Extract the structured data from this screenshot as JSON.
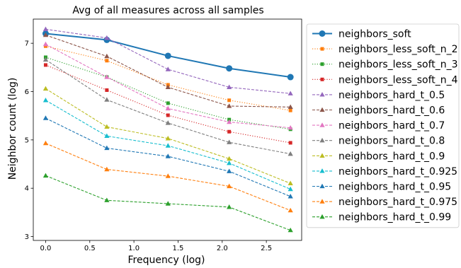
{
  "chart_data": {
    "type": "line",
    "title": "Avg of all measures across all samples",
    "xlabel": "Frequency (log)",
    "ylabel": "Neighbor count (log)",
    "xlim": [
      -0.14,
      2.9
    ],
    "ylim": [
      2.92,
      7.5
    ],
    "xticks": [
      0.0,
      0.5,
      1.0,
      1.5,
      2.0,
      2.5
    ],
    "xtick_labels": [
      "0.0",
      "0.5",
      "1.0",
      "1.5",
      "2.0",
      "2.5"
    ],
    "yticks": [
      3,
      4,
      5,
      6,
      7
    ],
    "ytick_labels": [
      "3",
      "4",
      "5",
      "6",
      "7"
    ],
    "x": [
      0.0,
      0.693,
      1.386,
      2.079,
      2.773
    ],
    "legend_position": "right, outside plot",
    "grid": false,
    "series": [
      {
        "name": "neighbors_soft",
        "color": "#1f77b4",
        "linestyle": "solid",
        "marker": "circle",
        "values": [
          7.2,
          7.07,
          6.74,
          6.48,
          6.3
        ]
      },
      {
        "name": "neighbors_less_soft_n_2",
        "color": "#ff7f0e",
        "linestyle": "dotted",
        "marker": "square",
        "values": [
          6.94,
          6.64,
          6.14,
          5.82,
          5.61
        ]
      },
      {
        "name": "neighbors_less_soft_n_3",
        "color": "#2ca02c",
        "linestyle": "dotted",
        "marker": "square",
        "values": [
          6.71,
          6.3,
          5.76,
          5.42,
          5.22
        ]
      },
      {
        "name": "neighbors_less_soft_n_4",
        "color": "#d62728",
        "linestyle": "dotted",
        "marker": "square",
        "values": [
          6.55,
          6.03,
          5.51,
          5.17,
          4.94
        ]
      },
      {
        "name": "neighbors_hard_t_0.5",
        "color": "#9467bd",
        "linestyle": "dashed",
        "marker": "triangle",
        "values": [
          7.29,
          7.11,
          6.46,
          6.09,
          5.96
        ]
      },
      {
        "name": "neighbors_hard_t_0.6",
        "color": "#8c564b",
        "linestyle": "dashed",
        "marker": "triangle",
        "values": [
          7.17,
          6.73,
          6.09,
          5.7,
          5.68
        ]
      },
      {
        "name": "neighbors_hard_t_0.7",
        "color": "#e377c2",
        "linestyle": "dashed",
        "marker": "triangle",
        "values": [
          6.98,
          6.3,
          5.65,
          5.37,
          5.25
        ]
      },
      {
        "name": "neighbors_hard_t_0.8",
        "color": "#7f7f7f",
        "linestyle": "dashed",
        "marker": "triangle",
        "values": [
          6.66,
          5.83,
          5.35,
          4.95,
          4.71
        ]
      },
      {
        "name": "neighbors_hard_t_0.9",
        "color": "#bcbd22",
        "linestyle": "dashed",
        "marker": "triangle",
        "values": [
          6.06,
          5.27,
          5.03,
          4.61,
          4.1
        ]
      },
      {
        "name": "neighbors_hard_t_0.925",
        "color": "#17becf",
        "linestyle": "dashed",
        "marker": "triangle",
        "values": [
          5.82,
          5.08,
          4.88,
          4.52,
          3.98
        ]
      },
      {
        "name": "neighbors_hard_t_0.95",
        "color": "#1f77b4",
        "linestyle": "dashed",
        "marker": "triangle",
        "values": [
          5.45,
          4.83,
          4.66,
          4.35,
          3.83
        ]
      },
      {
        "name": "neighbors_hard_t_0.975",
        "color": "#ff7f0e",
        "linestyle": "dashed",
        "marker": "triangle",
        "values": [
          4.93,
          4.39,
          4.25,
          4.04,
          3.54
        ]
      },
      {
        "name": "neighbors_hard_t_0.99",
        "color": "#2ca02c",
        "linestyle": "dashed",
        "marker": "triangle",
        "values": [
          4.26,
          3.75,
          3.68,
          3.61,
          3.13
        ]
      }
    ]
  }
}
